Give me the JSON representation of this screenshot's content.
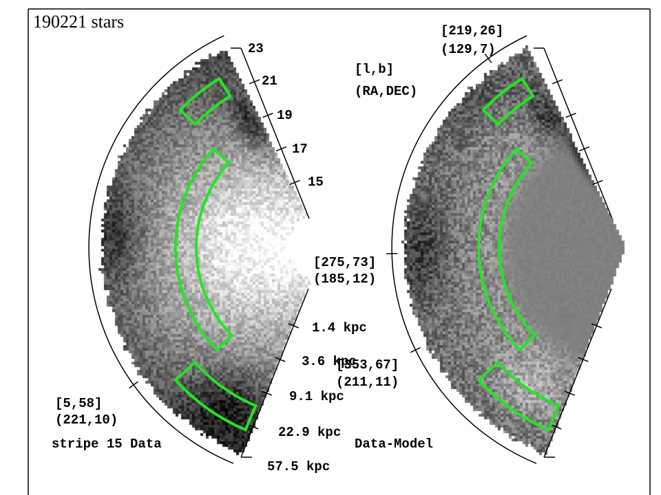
{
  "chart_data": {
    "type": "heatmap",
    "title": "190221 stars",
    "magnitude_ticks": [
      23,
      21,
      19,
      17,
      15
    ],
    "distance_ticks": [
      "1.4 kpc",
      "3.6 kpc",
      "9.1 kpc",
      "22.9 kpc",
      "57.5 kpc"
    ],
    "coordinate_key": {
      "galactic": "[l,b]",
      "equatorial": "(RA,DEC)"
    },
    "panels": [
      {
        "label": "stripe 15 Data",
        "coordinate_marks": [
          {
            "lb": "[5,58]",
            "radec": "(221,10)"
          }
        ]
      },
      {
        "label": "Data-Model",
        "coordinate_marks": [
          {
            "lb": "[219,26]",
            "radec": "(129,7)"
          },
          {
            "lb": "[275,73]",
            "radec": "(185,12)"
          },
          {
            "lb": "[353,67]",
            "radec": "(211,11)"
          }
        ]
      }
    ],
    "grid": false,
    "colors": {
      "highlight_box": "#22e622",
      "axes": "#000000"
    }
  }
}
